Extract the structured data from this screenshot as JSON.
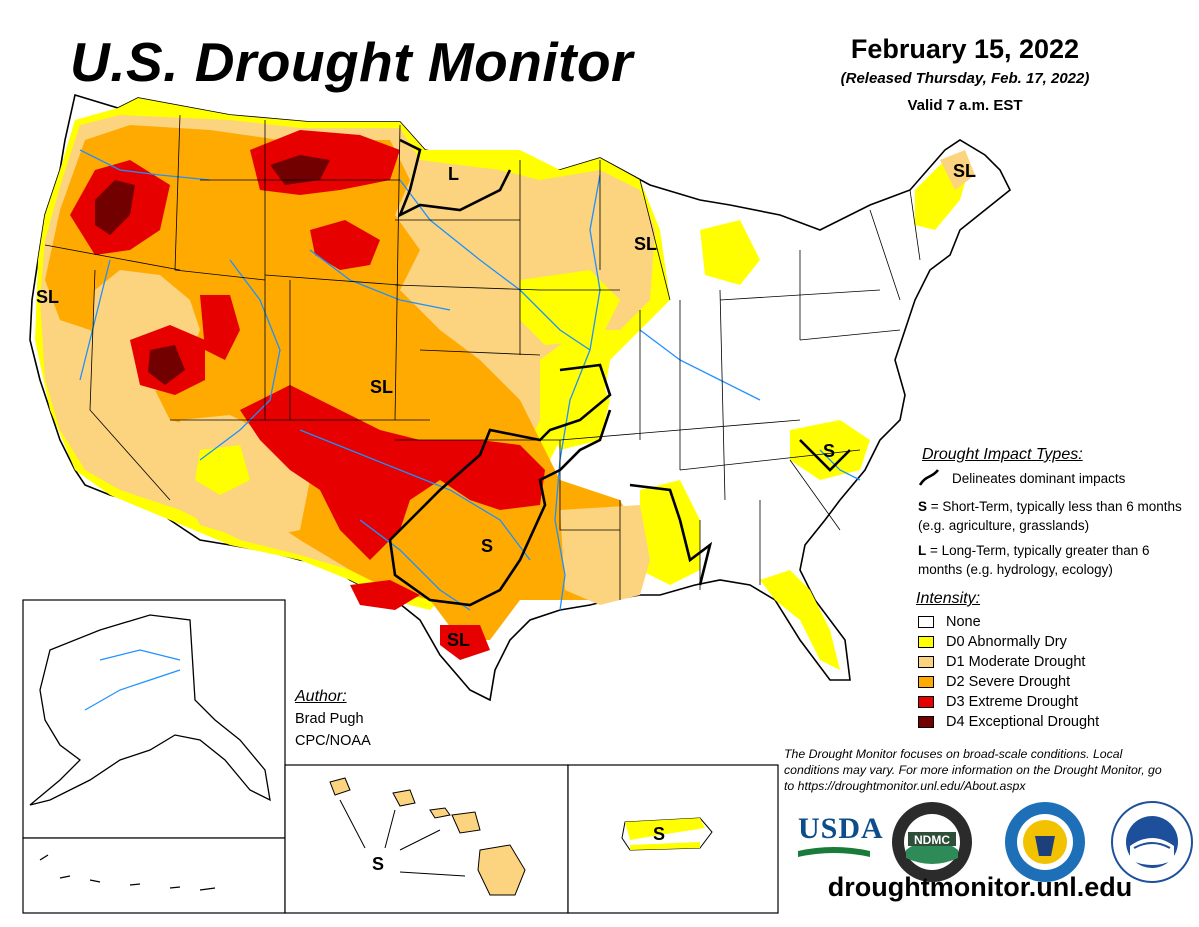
{
  "header": {
    "title": "U.S. Drought Monitor",
    "date": "February 15, 2022",
    "released": "(Released Thursday, Feb. 17, 2022)",
    "valid": "Valid 7 a.m. EST"
  },
  "impact_types": {
    "title": "Drought Impact Types:",
    "delineates": "Delineates dominant impacts",
    "s_key": "S",
    "s_text": " = Short-Term, typically less than 6 months (e.g. agriculture, grasslands)",
    "l_key": "L",
    "l_text": " = Long-Term, typically greater than 6 months (e.g. hydrology, ecology)"
  },
  "intensity": {
    "title": "Intensity:",
    "items": [
      {
        "label": "None",
        "color": "#ffffff"
      },
      {
        "label": "D0 Abnormally Dry",
        "color": "#ffff00"
      },
      {
        "label": "D1 Moderate Drought",
        "color": "#fcd37f"
      },
      {
        "label": "D2 Severe Drought",
        "color": "#ffaa00"
      },
      {
        "label": "D3 Extreme Drought",
        "color": "#e60000"
      },
      {
        "label": "D4 Exceptional Drought",
        "color": "#730000"
      }
    ]
  },
  "author": {
    "label": "Author:",
    "name": "Brad Pugh",
    "org": "CPC/NOAA"
  },
  "disclaimer": "The Drought Monitor focuses on broad-scale conditions. Local conditions may vary. For more information on the Drought Monitor, go to https://droughtmonitor.unl.edu/About.aspx",
  "website": "droughtmonitor.unl.edu",
  "map_labels": {
    "sl_california": "SL",
    "sl_southwest": "SL",
    "sl_texas": "SL",
    "sl_wisconsin": "SL",
    "sl_maine": "SL",
    "l_minnesota": "L",
    "s_texas": "S",
    "s_carolina": "S",
    "s_hawaii": "S",
    "s_puerto_rico": "S"
  },
  "logos": {
    "usda": "USDA",
    "ndmc": "NDMC"
  },
  "colors": {
    "water": "#1e90ff",
    "state_border": "#000000"
  }
}
